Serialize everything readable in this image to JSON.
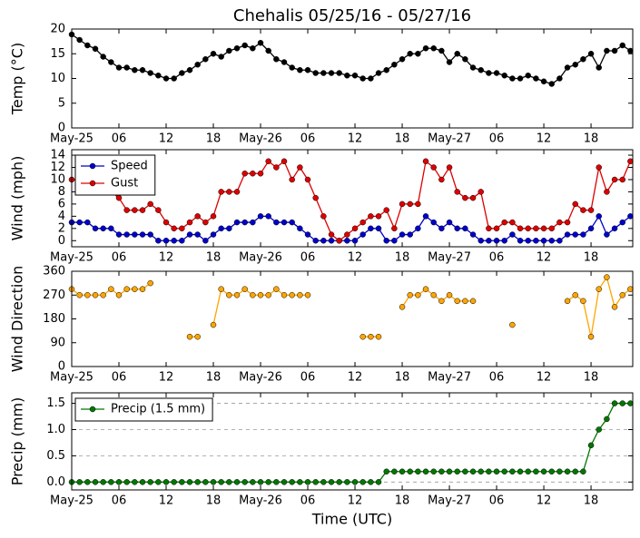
{
  "chart_data": [
    {
      "type": "line",
      "title": "Chehalis 05/25/16 - 05/27/16",
      "ylabel": "Temp (°C)",
      "x": [
        0,
        1,
        2,
        3,
        4,
        5,
        6,
        7,
        8,
        9,
        10,
        11,
        12,
        13,
        14,
        15,
        16,
        17,
        18,
        19,
        20,
        21,
        22,
        23,
        24,
        25,
        26,
        27,
        28,
        29,
        30,
        31,
        32,
        33,
        34,
        35,
        36,
        37,
        38,
        39,
        40,
        41,
        42,
        43,
        44,
        45,
        46,
        47,
        48,
        49,
        50,
        51,
        52,
        53,
        54,
        55,
        56,
        57,
        58,
        59,
        60,
        61,
        62,
        63,
        64,
        65,
        66,
        67,
        68,
        69,
        70,
        71
      ],
      "xlim": [
        0,
        71.3
      ],
      "xticks": [
        {
          "value": 0,
          "label": "May-25"
        },
        {
          "value": 6,
          "label": "06"
        },
        {
          "value": 12,
          "label": "12"
        },
        {
          "value": 18,
          "label": "18"
        },
        {
          "value": 24,
          "label": "May-26"
        },
        {
          "value": 30,
          "label": "06"
        },
        {
          "value": 36,
          "label": "12"
        },
        {
          "value": 42,
          "label": "18"
        },
        {
          "value": 48,
          "label": "May-27"
        },
        {
          "value": 54,
          "label": "06"
        },
        {
          "value": 60,
          "label": "12"
        },
        {
          "value": 66,
          "label": "18"
        }
      ],
      "ylim": [
        0,
        20
      ],
      "yticks": [
        0,
        5,
        10,
        15,
        20
      ],
      "grid": false,
      "series": [
        {
          "color": "#000000",
          "values": [
            18.9,
            17.8,
            16.7,
            16,
            14.4,
            13.3,
            12.2,
            12.2,
            11.7,
            11.7,
            11.1,
            10.6,
            10,
            10,
            11.1,
            11.7,
            12.8,
            13.9,
            15,
            14.4,
            15.6,
            16.1,
            16.7,
            16.1,
            17.2,
            15.6,
            13.9,
            13.3,
            12.2,
            11.7,
            11.7,
            11.1,
            11.1,
            11.1,
            11.1,
            10.6,
            10.6,
            10,
            10,
            11.1,
            11.7,
            12.8,
            13.9,
            15,
            15,
            16.1,
            16.1,
            15.6,
            13.3,
            15,
            13.9,
            12.2,
            11.7,
            11.1,
            11.1,
            10.6,
            10,
            10,
            10.6,
            10,
            9.4,
            8.9,
            10,
            12.2,
            12.8,
            13.9,
            15,
            12.2,
            15.6,
            15.6,
            16.7,
            15.6
          ]
        }
      ]
    },
    {
      "type": "line",
      "ylabel": "Wind (mph)",
      "x": [
        0,
        1,
        2,
        3,
        4,
        5,
        6,
        7,
        8,
        9,
        10,
        11,
        12,
        13,
        14,
        15,
        16,
        17,
        18,
        19,
        20,
        21,
        22,
        23,
        24,
        25,
        26,
        27,
        28,
        29,
        30,
        31,
        32,
        33,
        34,
        35,
        36,
        37,
        38,
        39,
        40,
        41,
        42,
        43,
        44,
        45,
        46,
        47,
        48,
        49,
        50,
        51,
        52,
        53,
        54,
        55,
        56,
        57,
        58,
        59,
        60,
        61,
        62,
        63,
        64,
        65,
        66,
        67,
        68,
        69,
        70,
        71
      ],
      "xlim": [
        0,
        71.3
      ],
      "xticks": [
        {
          "value": 0,
          "label": "May-25"
        },
        {
          "value": 6,
          "label": "06"
        },
        {
          "value": 12,
          "label": "12"
        },
        {
          "value": 18,
          "label": "18"
        },
        {
          "value": 24,
          "label": "May-26"
        },
        {
          "value": 30,
          "label": "06"
        },
        {
          "value": 36,
          "label": "12"
        },
        {
          "value": 42,
          "label": "18"
        },
        {
          "value": 48,
          "label": "May-27"
        },
        {
          "value": 54,
          "label": "06"
        },
        {
          "value": 60,
          "label": "12"
        },
        {
          "value": 66,
          "label": "18"
        }
      ],
      "ylim": [
        -1,
        14.9
      ],
      "yticks": [
        0,
        2,
        4,
        6,
        8,
        10,
        12,
        14
      ],
      "grid": false,
      "legend": "upper left",
      "series": [
        {
          "name": "Speed",
          "color": "#0000cc",
          "values": [
            3,
            3,
            3,
            2,
            2,
            2,
            1,
            1,
            1,
            1,
            1,
            0,
            0,
            0,
            0,
            1,
            1,
            0,
            1,
            2,
            2,
            3,
            3,
            3,
            4,
            4,
            3,
            3,
            3,
            2,
            1,
            0,
            0,
            0,
            0,
            0,
            0,
            1,
            2,
            2,
            0,
            0,
            1,
            1,
            2,
            4,
            3,
            2,
            3,
            2,
            2,
            1,
            0,
            0,
            0,
            0,
            1,
            0,
            0,
            0,
            0,
            0,
            0,
            1,
            1,
            1,
            2,
            4,
            1,
            2,
            3,
            4
          ]
        },
        {
          "name": "Gust",
          "color": "#dd0000",
          "values": [
            10,
            10,
            9,
            9,
            8,
            8,
            7,
            5,
            5,
            5,
            6,
            5,
            3,
            2,
            2,
            3,
            4,
            3,
            4,
            8,
            8,
            8,
            11,
            11,
            11,
            13,
            12,
            13,
            10,
            12,
            10,
            7,
            4,
            1,
            0,
            1,
            2,
            3,
            4,
            4,
            5,
            2,
            6,
            6,
            6,
            13,
            12,
            10,
            12,
            8,
            7,
            7,
            8,
            2,
            2,
            3,
            3,
            2,
            2,
            2,
            2,
            2,
            3,
            3,
            6,
            5,
            5,
            12,
            8,
            10,
            10,
            13
          ]
        }
      ]
    },
    {
      "type": "line",
      "ylabel": "Wind Direction",
      "x": [
        0,
        1,
        2,
        3,
        4,
        5,
        6,
        7,
        8,
        9,
        10,
        11,
        12,
        13,
        14,
        15,
        16,
        17,
        18,
        19,
        20,
        21,
        22,
        23,
        24,
        25,
        26,
        27,
        28,
        29,
        30,
        31,
        32,
        33,
        34,
        35,
        36,
        37,
        38,
        39,
        40,
        41,
        42,
        43,
        44,
        45,
        46,
        47,
        48,
        49,
        50,
        51,
        52,
        53,
        54,
        55,
        56,
        57,
        58,
        59,
        60,
        61,
        62,
        63,
        64,
        65,
        66,
        67,
        68,
        69,
        70,
        71
      ],
      "xlim": [
        0,
        71.3
      ],
      "xticks": [
        {
          "value": 0,
          "label": "May-25"
        },
        {
          "value": 6,
          "label": "06"
        },
        {
          "value": 12,
          "label": "12"
        },
        {
          "value": 18,
          "label": "18"
        },
        {
          "value": 24,
          "label": "May-26"
        },
        {
          "value": 30,
          "label": "06"
        },
        {
          "value": 36,
          "label": "12"
        },
        {
          "value": 42,
          "label": "18"
        },
        {
          "value": 48,
          "label": "May-27"
        },
        {
          "value": 54,
          "label": "06"
        },
        {
          "value": 60,
          "label": "12"
        },
        {
          "value": 66,
          "label": "18"
        }
      ],
      "ylim": [
        0,
        360
      ],
      "yticks": [
        0,
        90,
        180,
        270,
        360
      ],
      "grid": false,
      "series": [
        {
          "color": "#ffa500",
          "values": [
            292.5,
            270,
            270,
            270,
            270,
            292.5,
            270,
            292.5,
            292.5,
            292.5,
            315,
            null,
            null,
            null,
            null,
            112.5,
            112.5,
            null,
            157.5,
            292.5,
            270,
            270,
            292.5,
            270,
            270,
            270,
            292.5,
            270,
            270,
            270,
            270,
            null,
            null,
            null,
            null,
            null,
            null,
            112.5,
            112.5,
            112.5,
            null,
            null,
            225,
            270,
            270,
            292.5,
            270,
            247.5,
            270,
            247.5,
            247.5,
            247.5,
            null,
            null,
            null,
            null,
            157.5,
            null,
            null,
            null,
            null,
            null,
            null,
            247.5,
            270,
            247.5,
            112.5,
            292.5,
            337.5,
            225,
            270,
            292.5
          ]
        }
      ]
    },
    {
      "type": "line",
      "ylabel": "Precip (mm)",
      "xlabel": "Time (UTC)",
      "x": [
        0,
        1,
        2,
        3,
        4,
        5,
        6,
        7,
        8,
        9,
        10,
        11,
        12,
        13,
        14,
        15,
        16,
        17,
        18,
        19,
        20,
        21,
        22,
        23,
        24,
        25,
        26,
        27,
        28,
        29,
        30,
        31,
        32,
        33,
        34,
        35,
        36,
        37,
        38,
        39,
        40,
        41,
        42,
        43,
        44,
        45,
        46,
        47,
        48,
        49,
        50,
        51,
        52,
        53,
        54,
        55,
        56,
        57,
        58,
        59,
        60,
        61,
        62,
        63,
        64,
        65,
        66,
        67,
        68,
        69,
        70,
        71
      ],
      "xlim": [
        0,
        71.3
      ],
      "xticks": [
        {
          "value": 0,
          "label": "May-25"
        },
        {
          "value": 6,
          "label": "06"
        },
        {
          "value": 12,
          "label": "12"
        },
        {
          "value": 18,
          "label": "18"
        },
        {
          "value": 24,
          "label": "May-26"
        },
        {
          "value": 30,
          "label": "06"
        },
        {
          "value": 36,
          "label": "12"
        },
        {
          "value": 42,
          "label": "18"
        },
        {
          "value": 48,
          "label": "May-27"
        },
        {
          "value": 54,
          "label": "06"
        },
        {
          "value": 60,
          "label": "12"
        },
        {
          "value": 66,
          "label": "18"
        }
      ],
      "ylim": [
        -0.15,
        1.7
      ],
      "yticks": [
        {
          "value": 0,
          "label": "0.0"
        },
        0.5,
        {
          "value": 1,
          "label": "1.0"
        },
        1.5
      ],
      "grid": true,
      "legend": "upper left",
      "series": [
        {
          "name": "Precip (1.5 mm)",
          "color": "#007700",
          "values": [
            0,
            0,
            0,
            0,
            0,
            0,
            0,
            0,
            0,
            0,
            0,
            0,
            0,
            0,
            0,
            0,
            0,
            0,
            0,
            0,
            0,
            0,
            0,
            0,
            0,
            0,
            0,
            0,
            0,
            0,
            0,
            0,
            0,
            0,
            0,
            0,
            0,
            0,
            0,
            0,
            0.2,
            0.2,
            0.2,
            0.2,
            0.2,
            0.2,
            0.2,
            0.2,
            0.2,
            0.2,
            0.2,
            0.2,
            0.2,
            0.2,
            0.2,
            0.2,
            0.2,
            0.2,
            0.2,
            0.2,
            0.2,
            0.2,
            0.2,
            0.2,
            0.2,
            0.2,
            0.7,
            1,
            1.2,
            1.5,
            1.5,
            1.5
          ]
        }
      ]
    }
  ]
}
